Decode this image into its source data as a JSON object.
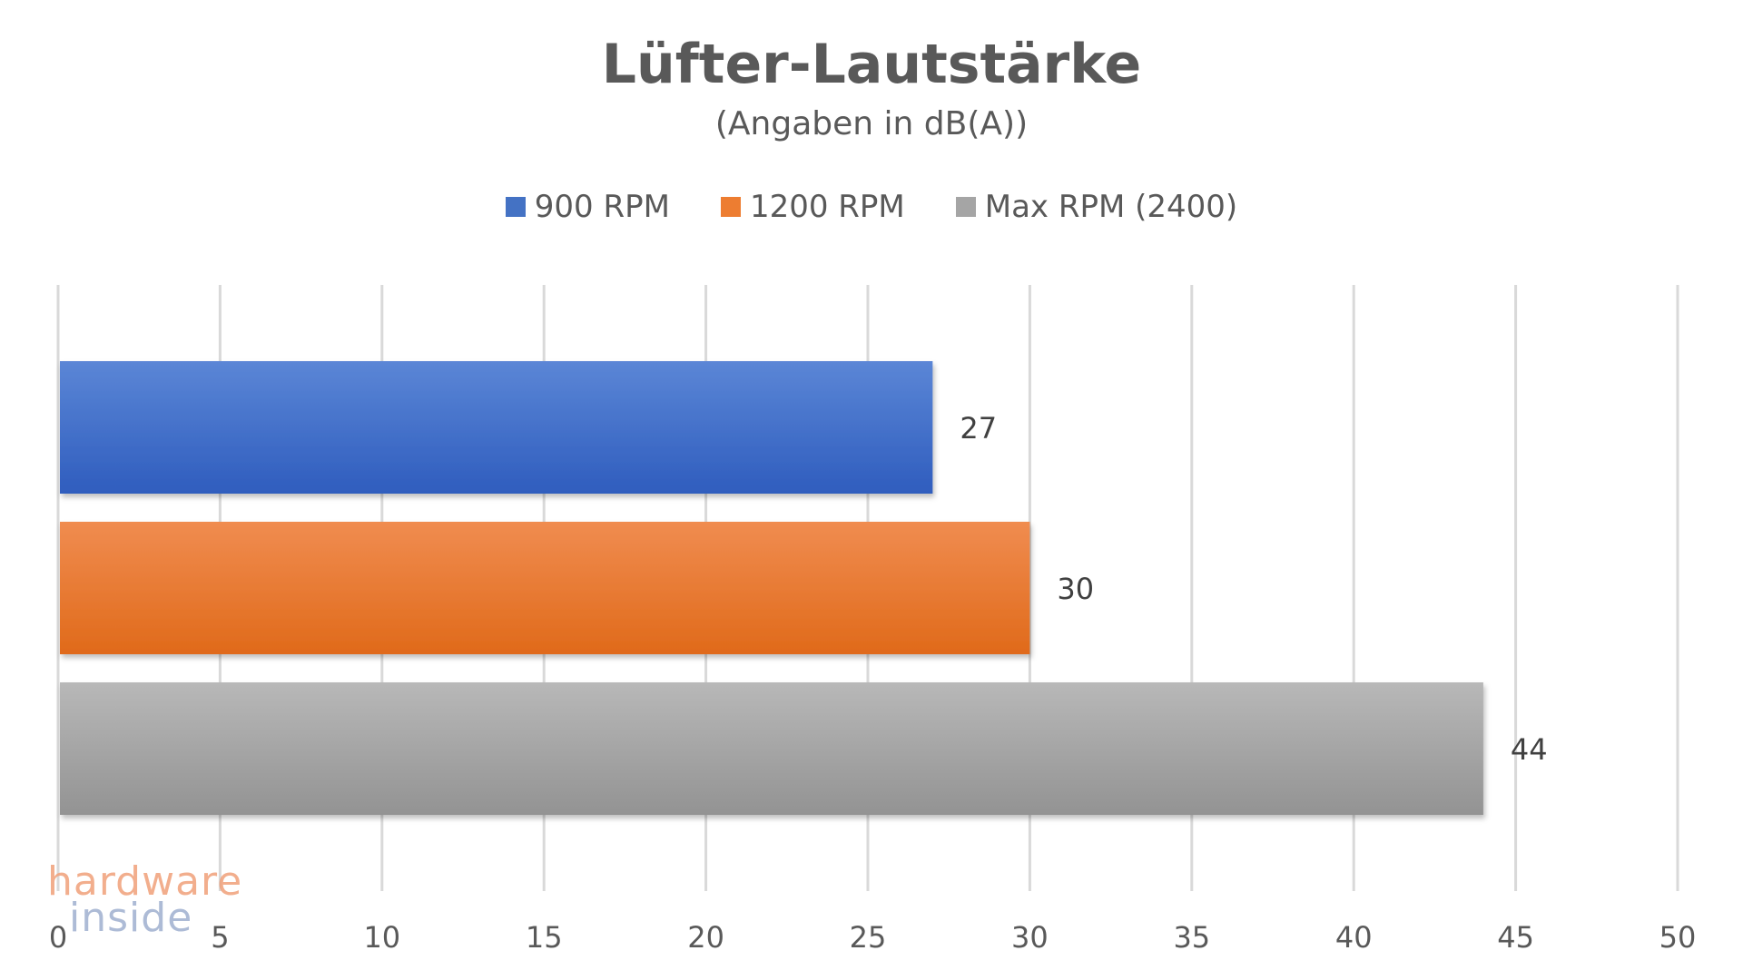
{
  "chart_data": {
    "type": "bar",
    "orientation": "horizontal",
    "title": "Lüfter-Lautstärke",
    "subtitle": "(Angaben in dB(A))",
    "xlim": [
      0,
      50
    ],
    "xticks": [
      0,
      5,
      10,
      15,
      20,
      25,
      30,
      35,
      40,
      45,
      50
    ],
    "grid": true,
    "legend_position": "top",
    "series": [
      {
        "name": "900 RPM",
        "value": 27,
        "color": "#4472C4"
      },
      {
        "name": "1200 RPM",
        "value": 30,
        "color": "#ED7D31"
      },
      {
        "name": "Max RPM (2400)",
        "value": 44,
        "color": "#A5A5A5"
      }
    ]
  },
  "watermark": {
    "line1": "hardware",
    "line2": "inside"
  }
}
